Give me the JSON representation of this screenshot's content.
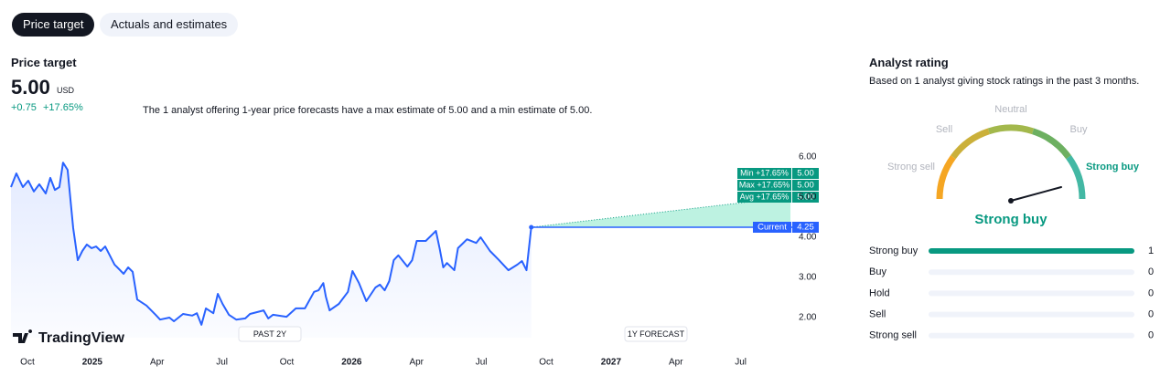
{
  "tabs": [
    "Price target",
    "Actuals and estimates"
  ],
  "summary": {
    "title": "Price target",
    "price": "5.00",
    "currency": "USD",
    "change": "+0.75",
    "change_percent": "+17.65%",
    "description": "The 1 analyst offering 1-year price forecasts have a max estimate of 5.00 and a min estimate of 5.00."
  },
  "chart_data": {
    "type": "line",
    "watermark": "TradingView",
    "annotations": [
      "PAST 2Y",
      "1Y FORECAST"
    ],
    "x": [
      -0.76,
      -0.51,
      -0.21,
      0.04,
      0.3,
      0.55,
      0.85,
      1.06,
      1.27,
      1.48,
      1.65,
      1.86,
      2.12,
      2.33,
      2.54,
      2.75,
      2.97,
      3.18,
      3.39,
      3.6,
      3.81,
      4.03,
      4.45,
      4.66,
      4.87,
      5.08,
      5.51,
      5.93,
      6.14,
      6.57,
      6.78,
      7.2,
      7.63,
      7.84,
      8.05,
      8.26,
      8.6,
      8.81,
      9.03,
      9.32,
      9.66,
      10.08,
      10.3,
      10.93,
      11.14,
      11.36,
      11.99,
      12.42,
      12.84,
      13.26,
      13.47,
      13.69,
      13.81,
      13.98,
      14.41,
      14.83,
      15.04,
      15.34,
      15.68,
      16.1,
      16.31,
      16.53,
      16.74,
      16.95,
      17.16,
      17.58,
      17.8,
      18.01,
      18.43,
      18.9,
      19.07,
      19.24,
      19.41,
      19.75,
      19.92,
      20.34,
      20.76,
      20.97,
      21.4,
      21.82,
      22.25,
      22.67,
      22.88,
      23.09,
      23.31
    ],
    "values": [
      5.25,
      5.59,
      5.25,
      5.41,
      5.14,
      5.32,
      5.09,
      5.48,
      5.18,
      5.25,
      5.86,
      5.68,
      4.23,
      3.43,
      3.66,
      3.82,
      3.73,
      3.77,
      3.66,
      3.77,
      3.55,
      3.32,
      3.09,
      3.25,
      3.14,
      2.45,
      2.3,
      2.07,
      1.95,
      2.0,
      1.91,
      2.09,
      2.05,
      2.11,
      1.82,
      2.23,
      2.11,
      2.59,
      2.34,
      2.07,
      1.95,
      1.98,
      2.09,
      2.18,
      1.98,
      2.07,
      2.02,
      2.23,
      2.23,
      2.64,
      2.68,
      2.86,
      2.52,
      2.18,
      2.34,
      2.64,
      3.16,
      2.86,
      2.41,
      2.75,
      2.82,
      2.68,
      2.91,
      3.43,
      3.55,
      3.27,
      3.43,
      3.91,
      3.91,
      4.16,
      3.73,
      3.25,
      3.36,
      3.18,
      3.73,
      3.95,
      3.86,
      4.0,
      3.66,
      3.43,
      3.18,
      3.32,
      3.41,
      3.18,
      4.25
    ],
    "color": "#2962ff",
    "xlim": [
      -0.76,
      35.3
    ],
    "xticks": [
      {
        "value": 0,
        "label": "Oct"
      },
      {
        "value": 3,
        "label": "2025"
      },
      {
        "value": 6,
        "label": "Apr"
      },
      {
        "value": 9,
        "label": "Jul"
      },
      {
        "value": 12,
        "label": "Oct"
      },
      {
        "value": 15,
        "label": "2026"
      },
      {
        "value": 18,
        "label": "Apr"
      },
      {
        "value": 21,
        "label": "Jul"
      },
      {
        "value": 24,
        "label": "Oct"
      },
      {
        "value": 27,
        "label": "2027"
      },
      {
        "value": 30,
        "label": "Apr"
      },
      {
        "value": 33,
        "label": "Jul"
      }
    ],
    "ylim": [
      1.5,
      6.5
    ],
    "yticks": [
      {
        "value": 2,
        "label": "2.00"
      },
      {
        "value": 3,
        "label": "3.00"
      },
      {
        "value": 4,
        "label": "4.00"
      },
      {
        "value": 5,
        "label": "5.00"
      },
      {
        "value": 6,
        "label": "6.00"
      }
    ],
    "forecast": {
      "x": 35.3,
      "color": "#089981",
      "estimates": [
        {
          "name": "Min +17.65%",
          "value": 5,
          "value_label": "5.00"
        },
        {
          "name": "Max +17.65%",
          "value": 5,
          "value_label": "5.00"
        },
        {
          "name": "Avg +17.65%",
          "value": 5,
          "value_label": "5.00"
        }
      ]
    },
    "current": {
      "name": "Current",
      "value": 4.25,
      "color": "#2962ff"
    }
  },
  "analyst_rating": {
    "title": "Analyst rating",
    "subtitle": "Based on 1 analyst giving stock ratings in the past 3 months.",
    "gauge_labels": [
      "Strong sell",
      "Sell",
      "Neutral",
      "Buy",
      "Strong buy"
    ],
    "verdict": "Strong buy",
    "ratings": {
      "categories": [
        "Strong buy",
        "Buy",
        "Hold",
        "Sell",
        "Strong sell"
      ],
      "values": [
        1,
        0,
        0,
        0,
        0
      ],
      "color": "#089981"
    }
  }
}
